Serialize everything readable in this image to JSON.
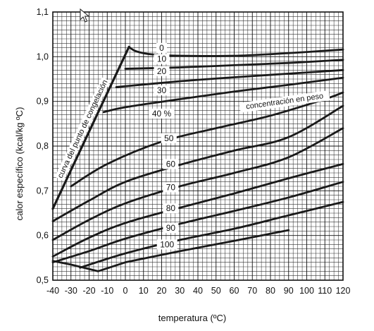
{
  "chart_data": {
    "type": "line",
    "xlabel": "temperatura (ºC)",
    "ylabel": "calor específico (kcal/kg ºC)",
    "xlim": [
      -40,
      120
    ],
    "ylim": [
      0.5,
      1.1
    ],
    "x_ticks": [
      -40,
      -30,
      -20,
      -10,
      0,
      10,
      20,
      30,
      40,
      50,
      60,
      70,
      80,
      90,
      100,
      110,
      120
    ],
    "x_tick_labels": [
      "-40",
      "-30",
      "-20",
      "-10",
      "0",
      "10",
      "20",
      "30",
      "40",
      "50",
      "60",
      "70",
      "80",
      "90",
      "100",
      "110",
      "120"
    ],
    "y_ticks": [
      0.5,
      0.6,
      0.7,
      0.8,
      0.9,
      1.0,
      1.1
    ],
    "y_tick_labels": [
      "0,5",
      "0,6",
      "0,7",
      "0,8",
      "0,9",
      "1,0",
      "1,1"
    ],
    "grid": true,
    "annotations": {
      "concentration": "concentración en peso",
      "freezing_curve": "curva del punto de congelación"
    },
    "freezing_curve": {
      "x": [
        -40,
        2
      ],
      "y": [
        0.66,
        1.022
      ]
    },
    "series": [
      {
        "name": "0",
        "label_at": [
          20,
          1.015
        ],
        "x": [
          2,
          6,
          15,
          30,
          60,
          90,
          120
        ],
        "y": [
          1.022,
          1.012,
          1.005,
          1.002,
          1.002,
          1.008,
          1.016
        ]
      },
      {
        "name": "10",
        "label_at": [
          20,
          0.99
        ],
        "x": [
          0,
          30,
          60,
          90,
          120
        ],
        "y": [
          0.973,
          0.976,
          0.981,
          0.986,
          0.993
        ]
      },
      {
        "name": "20",
        "label_at": [
          20,
          0.963
        ],
        "x": [
          -5,
          30,
          60,
          90,
          120
        ],
        "y": [
          0.932,
          0.945,
          0.954,
          0.962,
          0.97
        ]
      },
      {
        "name": "30",
        "label_at": [
          20,
          0.92
        ],
        "x": [
          -12,
          0,
          30,
          60,
          90,
          120
        ],
        "y": [
          0.876,
          0.887,
          0.905,
          0.922,
          0.937,
          0.953
        ]
      },
      {
        "name": "40 %",
        "label_at": [
          20,
          0.868
        ],
        "x": [
          -30,
          -10,
          20,
          50,
          80,
          110,
          120
        ],
        "y": [
          0.71,
          0.76,
          0.81,
          0.84,
          0.868,
          0.905,
          0.92
        ]
      },
      {
        "name": "50",
        "label_at": [
          24,
          0.813
        ],
        "x": [
          -40,
          -20,
          0,
          30,
          60,
          90,
          120
        ],
        "y": [
          0.632,
          0.678,
          0.72,
          0.758,
          0.79,
          0.82,
          0.89
        ]
      },
      {
        "name": "60",
        "label_at": [
          25,
          0.755
        ],
        "x": [
          -40,
          -20,
          0,
          30,
          60,
          90,
          120
        ],
        "y": [
          0.59,
          0.635,
          0.672,
          0.71,
          0.74,
          0.775,
          0.84
        ]
      },
      {
        "name": "70",
        "label_at": [
          25,
          0.703
        ],
        "x": [
          -40,
          -20,
          0,
          30,
          60,
          90,
          120
        ],
        "y": [
          0.553,
          0.595,
          0.628,
          0.662,
          0.694,
          0.728,
          0.76
        ]
      },
      {
        "name": "80",
        "label_at": [
          25,
          0.656
        ],
        "x": [
          -40,
          -20,
          0,
          30,
          60,
          90,
          120
        ],
        "y": [
          0.54,
          0.565,
          0.593,
          0.626,
          0.655,
          0.685,
          0.72
        ]
      },
      {
        "name": "90",
        "label_at": [
          25,
          0.612
        ],
        "x": [
          -25,
          0,
          30,
          60,
          90,
          120
        ],
        "y": [
          0.528,
          0.56,
          0.59,
          0.615,
          0.645,
          0.675
        ]
      },
      {
        "name": "100",
        "label_at": [
          23,
          0.575
        ],
        "x": [
          -40,
          -30,
          -15,
          0,
          30,
          60,
          90
        ],
        "y": [
          0.543,
          0.535,
          0.52,
          0.54,
          0.565,
          0.588,
          0.612
        ]
      }
    ]
  }
}
